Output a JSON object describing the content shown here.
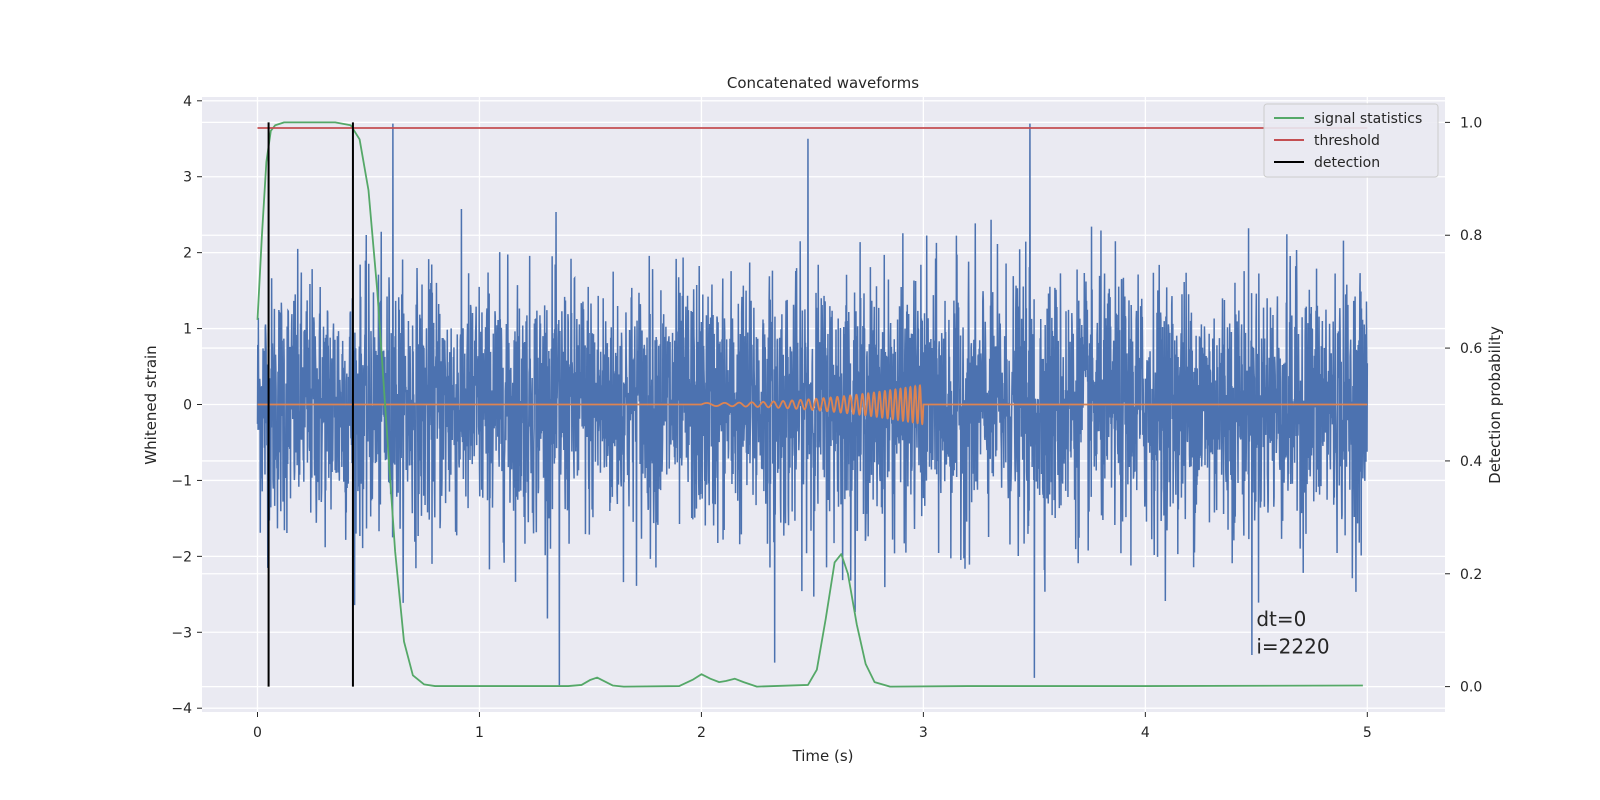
{
  "chart_data": {
    "type": "line",
    "title": "Concatenated waveforms",
    "xlabel": "Time (s)",
    "ylabel": "Whitened strain",
    "y2label": "Detection probability",
    "xlim": [
      -0.25,
      5.35
    ],
    "ylim": [
      -4.05,
      4.05
    ],
    "y2lim": [
      -0.045,
      1.045
    ],
    "x_ticks": [
      0,
      1,
      2,
      3,
      4,
      5
    ],
    "y_ticks": [
      -4,
      -3,
      -2,
      -1,
      0,
      1,
      2,
      3,
      4
    ],
    "y2_ticks": [
      0.0,
      0.2,
      0.4,
      0.6,
      0.8,
      1.0
    ],
    "x_tick_labels": [
      "0",
      "1",
      "2",
      "3",
      "4",
      "5"
    ],
    "y_tick_labels": [
      "−4",
      "−3",
      "−2",
      "−1",
      "0",
      "1",
      "2",
      "3",
      "4"
    ],
    "y2_tick_labels": [
      "0.0",
      "0.2",
      "0.4",
      "0.6",
      "0.8",
      "1.0"
    ],
    "grid": true,
    "legend_position": "top-right",
    "legend": [
      "signal statistics",
      "threshold",
      "detection"
    ],
    "series": [
      {
        "name": "",
        "axis": "left",
        "color": "#4c72b0",
        "kind": "noise",
        "x_range": [
          0,
          5
        ],
        "std": 0.82,
        "peak_range": [
          -3.7,
          3.7
        ],
        "notable_spikes": [
          {
            "x": 0.61,
            "y": 3.7
          },
          {
            "x": 1.36,
            "y": -3.75
          },
          {
            "x": 2.48,
            "y": 3.5
          },
          {
            "x": 2.33,
            "y": -3.4
          },
          {
            "x": 3.48,
            "y": 3.7
          },
          {
            "x": 3.5,
            "y": -3.6
          },
          {
            "x": 4.48,
            "y": -3.3
          }
        ]
      },
      {
        "name": "",
        "axis": "left",
        "color": "#dd8452",
        "kind": "chirp",
        "x_range": [
          0,
          5
        ],
        "chirp_start": 2.0,
        "chirp_end": 3.0,
        "start_amplitude": 0.02,
        "peak_amplitude": 0.26,
        "start_frequency_hz": 10,
        "end_frequency_hz": 48
      },
      {
        "name": "signal statistics",
        "axis": "right",
        "color": "#55a868",
        "points": [
          [
            0,
            0.65
          ],
          [
            0.02,
            0.8
          ],
          [
            0.04,
            0.93
          ],
          [
            0.06,
            0.985
          ],
          [
            0.08,
            0.995
          ],
          [
            0.12,
            1.0
          ],
          [
            0.35,
            1.0
          ],
          [
            0.42,
            0.995
          ],
          [
            0.46,
            0.97
          ],
          [
            0.5,
            0.88
          ],
          [
            0.54,
            0.7
          ],
          [
            0.58,
            0.47
          ],
          [
            0.62,
            0.24
          ],
          [
            0.66,
            0.08
          ],
          [
            0.7,
            0.02
          ],
          [
            0.75,
            0.004
          ],
          [
            0.8,
            0.001
          ],
          [
            1.4,
            0.001
          ],
          [
            1.46,
            0.003
          ],
          [
            1.5,
            0.012
          ],
          [
            1.53,
            0.016
          ],
          [
            1.56,
            0.01
          ],
          [
            1.6,
            0.002
          ],
          [
            1.65,
            0.0
          ],
          [
            1.9,
            0.001
          ],
          [
            1.96,
            0.012
          ],
          [
            2.0,
            0.022
          ],
          [
            2.04,
            0.014
          ],
          [
            2.08,
            0.008
          ],
          [
            2.11,
            0.01
          ],
          [
            2.15,
            0.014
          ],
          [
            2.19,
            0.008
          ],
          [
            2.25,
            0.0
          ],
          [
            2.48,
            0.003
          ],
          [
            2.52,
            0.03
          ],
          [
            2.56,
            0.12
          ],
          [
            2.6,
            0.22
          ],
          [
            2.63,
            0.235
          ],
          [
            2.66,
            0.2
          ],
          [
            2.7,
            0.11
          ],
          [
            2.74,
            0.04
          ],
          [
            2.78,
            0.008
          ],
          [
            2.85,
            0.0
          ],
          [
            3.2,
            0.001
          ],
          [
            4.0,
            0.001
          ],
          [
            4.98,
            0.002
          ]
        ]
      },
      {
        "name": "threshold",
        "axis": "right",
        "color": "#c44e52",
        "points": [
          [
            0,
            0.99
          ],
          [
            5,
            0.99
          ]
        ]
      },
      {
        "name": "detection",
        "axis": "right",
        "color": "#000000",
        "kind": "vertical_lines",
        "x": [
          0.05,
          0.43
        ],
        "y_range": [
          0.0,
          1.0
        ]
      }
    ],
    "annotations": [
      {
        "text": "dt=0",
        "x": 4.5,
        "y": -2.92
      },
      {
        "text": "i=2220",
        "x": 4.5,
        "y": -3.28
      }
    ]
  }
}
